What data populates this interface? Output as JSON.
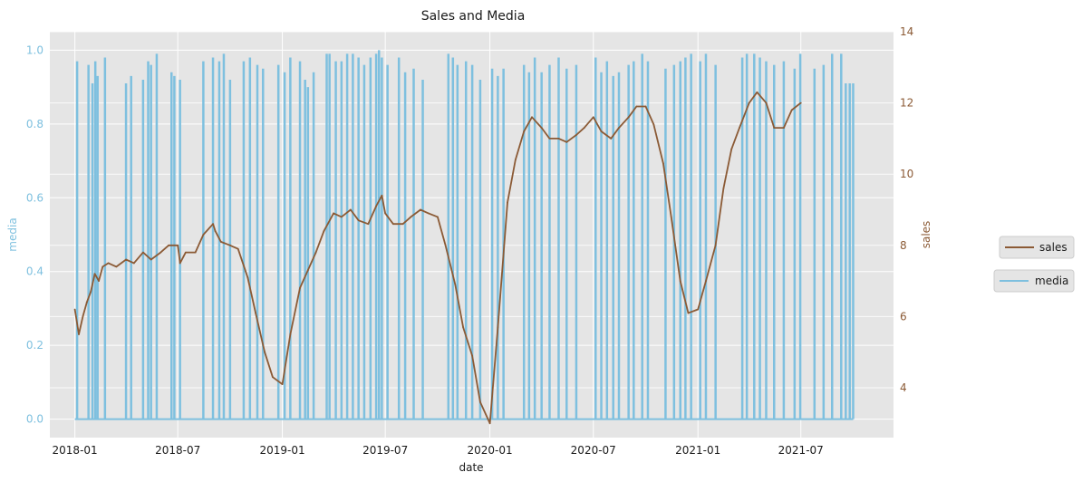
{
  "chart_data": {
    "type": "line",
    "title": "Sales and Media",
    "xlabel": "date",
    "y_left_label": "media",
    "y_right_label": "sales",
    "x_tick_labels": [
      "2018-01",
      "2018-07",
      "2019-01",
      "2019-07",
      "2020-01",
      "2020-07",
      "2021-01",
      "2021-07"
    ],
    "x_tick_dates": [
      "2018-01-01",
      "2018-07-01",
      "2019-01-01",
      "2019-07-01",
      "2020-01-01",
      "2020-07-01",
      "2021-01-01",
      "2021-07-01"
    ],
    "xlim": [
      "2017-11-18",
      "2021-12-11"
    ],
    "y_left_ticks": [
      "0.0",
      "0.2",
      "0.4",
      "0.6",
      "0.8",
      "1.0"
    ],
    "y_left_tick_values": [
      0,
      0.2,
      0.4,
      0.6,
      0.8,
      1.0
    ],
    "y_left_lim": [
      -0.05,
      1.05
    ],
    "y_right_ticks": [
      "4",
      "6",
      "8",
      "10",
      "12",
      "14"
    ],
    "y_right_tick_values": [
      4,
      6,
      8,
      10,
      12,
      14
    ],
    "y_right_lim": [
      2.6,
      14.0
    ],
    "grid": true,
    "legend_placement": "right-outside",
    "colors": {
      "media": "#7ec0df",
      "sales": "#8b5a35",
      "left_axis_text": "#7ec0df",
      "right_axis_text": "#8b5a35",
      "plot_background": "#e5e5e5",
      "grid": "#ffffff"
    },
    "series": [
      {
        "name": "sales",
        "axis": "right",
        "dates": [
          "2018-01-01",
          "2018-01-08",
          "2018-01-15",
          "2018-01-22",
          "2018-01-29",
          "2018-02-05",
          "2018-02-12",
          "2018-02-19",
          "2018-03-01",
          "2018-03-15",
          "2018-04-01",
          "2018-04-15",
          "2018-05-01",
          "2018-05-15",
          "2018-06-01",
          "2018-06-15",
          "2018-07-01",
          "2018-07-05",
          "2018-07-15",
          "2018-08-01",
          "2018-08-15",
          "2018-09-01",
          "2018-09-05",
          "2018-09-15",
          "2018-10-01",
          "2018-10-15",
          "2018-11-01",
          "2018-11-15",
          "2018-12-01",
          "2018-12-15",
          "2019-01-01",
          "2019-01-15",
          "2019-02-01",
          "2019-02-15",
          "2019-03-01",
          "2019-03-15",
          "2019-04-01",
          "2019-04-15",
          "2019-05-01",
          "2019-05-15",
          "2019-06-01",
          "2019-06-15",
          "2019-06-25",
          "2019-07-01",
          "2019-07-15",
          "2019-08-01",
          "2019-08-15",
          "2019-09-01",
          "2019-09-15",
          "2019-10-01",
          "2019-10-15",
          "2019-11-01",
          "2019-11-15",
          "2019-12-01",
          "2019-12-15",
          "2020-01-01",
          "2020-01-15",
          "2020-02-01",
          "2020-02-15",
          "2020-03-01",
          "2020-03-15",
          "2020-04-01",
          "2020-04-15",
          "2020-05-01",
          "2020-05-15",
          "2020-06-01",
          "2020-06-15",
          "2020-07-01",
          "2020-07-15",
          "2020-08-01",
          "2020-08-15",
          "2020-09-01",
          "2020-09-15",
          "2020-10-01",
          "2020-10-15",
          "2020-11-01",
          "2020-11-15",
          "2020-12-01",
          "2020-12-15",
          "2021-01-01",
          "2021-01-15",
          "2021-02-01",
          "2021-02-15",
          "2021-03-01",
          "2021-03-15",
          "2021-04-01",
          "2021-04-15",
          "2021-05-01",
          "2021-05-15",
          "2021-06-01",
          "2021-06-15",
          "2021-07-01"
        ],
        "values": [
          6.2,
          5.5,
          6.0,
          6.4,
          6.7,
          7.2,
          7.0,
          7.4,
          7.5,
          7.4,
          7.6,
          7.5,
          7.8,
          7.6,
          7.8,
          8.0,
          8.0,
          7.5,
          7.8,
          7.8,
          8.3,
          8.6,
          8.4,
          8.1,
          8.0,
          7.9,
          7.1,
          6.1,
          5.0,
          4.3,
          4.1,
          5.5,
          6.8,
          7.3,
          7.8,
          8.4,
          8.9,
          8.8,
          9.0,
          8.7,
          8.6,
          9.1,
          9.4,
          8.9,
          8.6,
          8.6,
          8.8,
          9.0,
          8.9,
          8.8,
          8.0,
          6.9,
          5.7,
          4.9,
          3.6,
          3.0,
          5.7,
          9.2,
          10.4,
          11.2,
          11.6,
          11.3,
          11.0,
          11.0,
          10.9,
          11.1,
          11.3,
          11.6,
          11.2,
          11.0,
          11.3,
          11.6,
          11.9,
          11.9,
          11.4,
          10.3,
          8.8,
          7.0,
          6.1,
          6.2,
          7.0,
          8.0,
          9.6,
          10.7,
          11.3,
          12.0,
          12.3,
          12.0,
          11.3,
          11.3,
          11.8,
          12.0
        ]
      },
      {
        "name": "media",
        "axis": "left",
        "spikes": [
          {
            "date": "2018-01-05",
            "value": 0.97
          },
          {
            "date": "2018-01-25",
            "value": 0.96
          },
          {
            "date": "2018-02-01",
            "value": 0.91
          },
          {
            "date": "2018-02-06",
            "value": 0.97
          },
          {
            "date": "2018-02-10",
            "value": 0.93
          },
          {
            "date": "2018-02-23",
            "value": 0.98
          },
          {
            "date": "2018-04-01",
            "value": 0.91
          },
          {
            "date": "2018-04-10",
            "value": 0.93
          },
          {
            "date": "2018-05-01",
            "value": 0.92
          },
          {
            "date": "2018-05-10",
            "value": 0.97
          },
          {
            "date": "2018-05-15",
            "value": 0.96
          },
          {
            "date": "2018-05-25",
            "value": 0.99
          },
          {
            "date": "2018-06-20",
            "value": 0.94
          },
          {
            "date": "2018-06-25",
            "value": 0.93
          },
          {
            "date": "2018-07-05",
            "value": 0.92
          },
          {
            "date": "2018-08-15",
            "value": 0.97
          },
          {
            "date": "2018-09-01",
            "value": 0.98
          },
          {
            "date": "2018-09-12",
            "value": 0.97
          },
          {
            "date": "2018-09-20",
            "value": 0.99
          },
          {
            "date": "2018-10-01",
            "value": 0.92
          },
          {
            "date": "2018-10-25",
            "value": 0.97
          },
          {
            "date": "2018-11-05",
            "value": 0.98
          },
          {
            "date": "2018-11-18",
            "value": 0.96
          },
          {
            "date": "2018-11-28",
            "value": 0.95
          },
          {
            "date": "2018-12-25",
            "value": 0.96
          },
          {
            "date": "2019-01-05",
            "value": 0.94
          },
          {
            "date": "2019-01-15",
            "value": 0.98
          },
          {
            "date": "2019-02-01",
            "value": 0.97
          },
          {
            "date": "2019-02-10",
            "value": 0.92
          },
          {
            "date": "2019-02-15",
            "value": 0.9
          },
          {
            "date": "2019-02-25",
            "value": 0.94
          },
          {
            "date": "2019-03-20",
            "value": 0.99
          },
          {
            "date": "2019-03-25",
            "value": 0.99
          },
          {
            "date": "2019-04-05",
            "value": 0.97
          },
          {
            "date": "2019-04-15",
            "value": 0.97
          },
          {
            "date": "2019-04-25",
            "value": 0.99
          },
          {
            "date": "2019-05-05",
            "value": 0.99
          },
          {
            "date": "2019-05-15",
            "value": 0.98
          },
          {
            "date": "2019-05-25",
            "value": 0.96
          },
          {
            "date": "2019-06-05",
            "value": 0.98
          },
          {
            "date": "2019-06-15",
            "value": 0.99
          },
          {
            "date": "2019-06-20",
            "value": 1.0
          },
          {
            "date": "2019-06-25",
            "value": 0.98
          },
          {
            "date": "2019-07-05",
            "value": 0.96
          },
          {
            "date": "2019-07-25",
            "value": 0.98
          },
          {
            "date": "2019-08-05",
            "value": 0.94
          },
          {
            "date": "2019-08-20",
            "value": 0.95
          },
          {
            "date": "2019-09-05",
            "value": 0.92
          },
          {
            "date": "2019-10-20",
            "value": 0.99
          },
          {
            "date": "2019-10-28",
            "value": 0.98
          },
          {
            "date": "2019-11-05",
            "value": 0.96
          },
          {
            "date": "2019-11-20",
            "value": 0.97
          },
          {
            "date": "2019-12-01",
            "value": 0.96
          },
          {
            "date": "2019-12-15",
            "value": 0.92
          },
          {
            "date": "2020-01-05",
            "value": 0.95
          },
          {
            "date": "2020-01-15",
            "value": 0.93
          },
          {
            "date": "2020-01-25",
            "value": 0.95
          },
          {
            "date": "2020-03-01",
            "value": 0.96
          },
          {
            "date": "2020-03-10",
            "value": 0.94
          },
          {
            "date": "2020-03-20",
            "value": 0.98
          },
          {
            "date": "2020-04-01",
            "value": 0.94
          },
          {
            "date": "2020-04-15",
            "value": 0.96
          },
          {
            "date": "2020-05-01",
            "value": 0.98
          },
          {
            "date": "2020-05-15",
            "value": 0.95
          },
          {
            "date": "2020-06-01",
            "value": 0.96
          },
          {
            "date": "2020-07-05",
            "value": 0.98
          },
          {
            "date": "2020-07-15",
            "value": 0.94
          },
          {
            "date": "2020-07-25",
            "value": 0.97
          },
          {
            "date": "2020-08-05",
            "value": 0.93
          },
          {
            "date": "2020-08-15",
            "value": 0.94
          },
          {
            "date": "2020-09-01",
            "value": 0.96
          },
          {
            "date": "2020-09-10",
            "value": 0.97
          },
          {
            "date": "2020-09-25",
            "value": 0.99
          },
          {
            "date": "2020-10-05",
            "value": 0.97
          },
          {
            "date": "2020-11-05",
            "value": 0.95
          },
          {
            "date": "2020-11-20",
            "value": 0.96
          },
          {
            "date": "2020-12-01",
            "value": 0.97
          },
          {
            "date": "2020-12-10",
            "value": 0.98
          },
          {
            "date": "2020-12-20",
            "value": 0.99
          },
          {
            "date": "2021-01-05",
            "value": 0.97
          },
          {
            "date": "2021-01-15",
            "value": 0.99
          },
          {
            "date": "2021-02-01",
            "value": 0.96
          },
          {
            "date": "2021-03-20",
            "value": 0.98
          },
          {
            "date": "2021-03-28",
            "value": 0.99
          },
          {
            "date": "2021-04-10",
            "value": 0.99
          },
          {
            "date": "2021-04-20",
            "value": 0.98
          },
          {
            "date": "2021-05-01",
            "value": 0.97
          },
          {
            "date": "2021-05-15",
            "value": 0.96
          },
          {
            "date": "2021-06-01",
            "value": 0.97
          },
          {
            "date": "2021-06-20",
            "value": 0.95
          },
          {
            "date": "2021-06-30",
            "value": 0.99
          },
          {
            "date": "2021-07-25",
            "value": 0.95
          },
          {
            "date": "2021-08-10",
            "value": 0.96
          },
          {
            "date": "2021-08-25",
            "value": 0.99
          },
          {
            "date": "2021-09-10",
            "value": 0.99
          },
          {
            "date": "2021-09-18",
            "value": 0.91
          },
          {
            "date": "2021-09-25",
            "value": 0.91
          },
          {
            "date": "2021-10-01",
            "value": 0.91
          }
        ]
      }
    ]
  }
}
